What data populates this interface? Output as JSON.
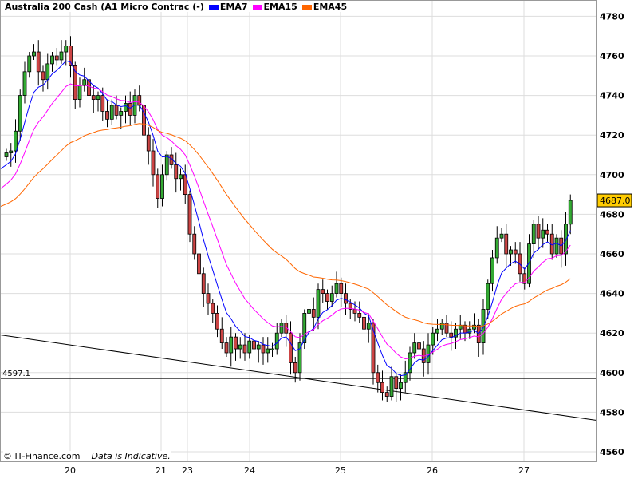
{
  "legend": {
    "title": "Australia 200 Cash (A1 Micro Contrac (-)",
    "series": [
      {
        "name": "EMA7",
        "color": "#0000ff"
      },
      {
        "name": "EMA15",
        "color": "#ff00ff"
      },
      {
        "name": "EMA45",
        "color": "#ff6600"
      }
    ]
  },
  "footer": {
    "copyright": "© IT-Finance.com",
    "note": "Data is Indicative."
  },
  "chart_data": {
    "type": "candlestick",
    "title": "Australia 200 Cash (A1 Micro Contrac (-)",
    "ylim": [
      4555,
      4788
    ],
    "yticks": [
      4560,
      4580,
      4600,
      4620,
      4640,
      4660,
      4680,
      4700,
      4720,
      4740,
      4760,
      4780
    ],
    "xtick_labels": [
      "20",
      "21",
      "23",
      "24",
      "25",
      "26",
      "27"
    ],
    "last_price": "4687.0",
    "last_price_color": "#ffcc00",
    "support_level": {
      "value": 4597.1,
      "label": "4597.1"
    },
    "trend_line": {
      "start": 4619,
      "end": 4576
    },
    "ema_seeds": {
      "EMA7": 4703,
      "EMA15": 4693,
      "EMA45": 4684
    },
    "first_open": 4709,
    "closes": [
      4711,
      4712,
      4722,
      4740,
      4752,
      4760,
      4762,
      4752,
      4748,
      4756,
      4760,
      4758,
      4762,
      4765,
      4755,
      4738,
      4745,
      4748,
      4740,
      4738,
      4740,
      4732,
      4728,
      4735,
      4730,
      4732,
      4736,
      4730,
      4740,
      4735,
      4720,
      4712,
      4700,
      4688,
      4700,
      4710,
      4705,
      4698,
      4700,
      4690,
      4670,
      4660,
      4650,
      4640,
      4635,
      4630,
      4622,
      4615,
      4610,
      4618,
      4612,
      4614,
      4610,
      4616,
      4612,
      4614,
      4610,
      4612,
      4612,
      4620,
      4625,
      4620,
      4605,
      4600,
      4615,
      4630,
      4632,
      4628,
      4642,
      4640,
      4636,
      4640,
      4645,
      4640,
      4635,
      4632,
      4630,
      4628,
      4622,
      4625,
      4600,
      4595,
      4590,
      4588,
      4598,
      4592,
      4595,
      4600,
      4610,
      4615,
      4612,
      4605,
      4614,
      4620,
      4622,
      4625,
      4620,
      4618,
      4622,
      4624,
      4620,
      4622,
      4624,
      4615,
      4632,
      4645,
      4658,
      4668,
      4670,
      4660,
      4662,
      4660,
      4650,
      4645,
      4665,
      4675,
      4668,
      4672,
      4670,
      4660,
      4668,
      4660,
      4675,
      4687
    ]
  }
}
